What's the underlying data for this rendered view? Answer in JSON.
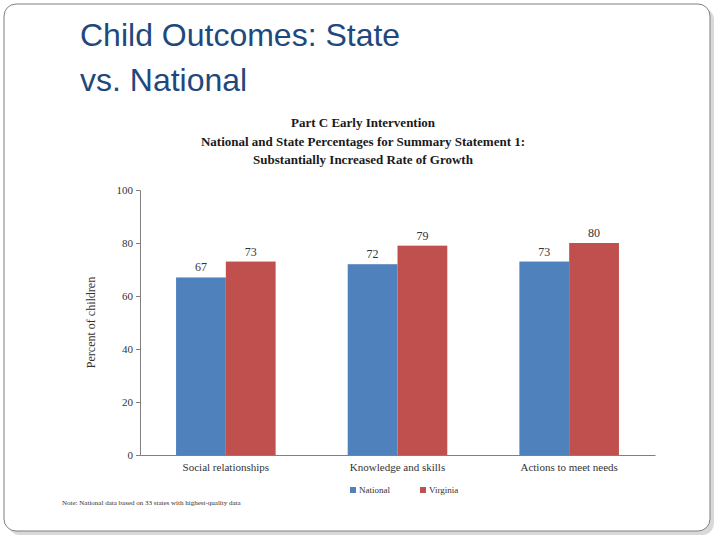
{
  "heading": "Child Outcomes: State vs. National",
  "chart_data": {
    "type": "bar",
    "title": "Part C Early Intervention",
    "subtitle": [
      "National and State Percentages for Summary Statement 1:",
      "Substantially Increased Rate of Growth"
    ],
    "y_label": "Percent of children",
    "categories": [
      "Social relationships",
      "Knowledge and skills",
      "Actions to meet needs"
    ],
    "series": [
      {
        "name": "National",
        "color": "#4f81bd",
        "values": [
          67,
          72,
          73
        ]
      },
      {
        "name": "Virginia",
        "color": "#c0504d",
        "values": [
          73,
          79,
          80
        ]
      }
    ],
    "ylim": [
      0,
      100
    ],
    "yticks": [
      0,
      20,
      40,
      60,
      80,
      100
    ],
    "grid": false,
    "legend": "bottom",
    "data_labels": true,
    "note": "Note: National data based on 33 states with highest-quality data"
  }
}
